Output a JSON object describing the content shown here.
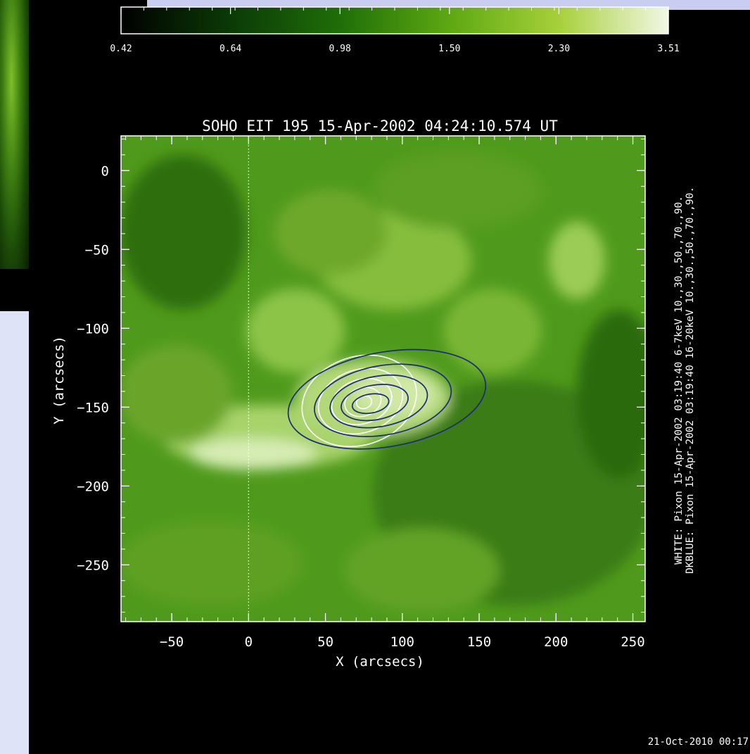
{
  "colorbar": {
    "tick_labels": [
      "0.42",
      "0.64",
      "0.98",
      "1.50",
      "2.30",
      "3.51"
    ],
    "colors": [
      "#000000",
      "#0b3a06",
      "#1f6e08",
      "#5da812",
      "#a7d03a",
      "#f2f7e6"
    ]
  },
  "chart_data": {
    "type": "heatmap",
    "title": "SOHO EIT 195 15-Apr-2002 04:24:10.574 UT",
    "xlabel": "X (arcsecs)",
    "ylabel": "Y (arcsecs)",
    "xlim": [
      -83,
      258
    ],
    "ylim": [
      -286,
      22
    ],
    "x_ticks": [
      -50,
      0,
      50,
      100,
      150,
      200,
      250
    ],
    "y_ticks": [
      0,
      -50,
      -100,
      -150,
      -200,
      -250
    ],
    "x_tick_labels": [
      "−50",
      "0",
      "50",
      "100",
      "150",
      "200",
      "250"
    ],
    "y_tick_labels": [
      "0",
      "−50",
      "−100",
      "−150",
      "−200",
      "−250"
    ],
    "vertical_guide_x": 0,
    "contours": [
      {
        "name": "WHITE",
        "color": "#ffffff",
        "center": [
          72,
          -146
        ],
        "levels": [
          10,
          30,
          50,
          70,
          90
        ],
        "radii": [
          [
            38,
            28
          ],
          [
            28,
            20
          ],
          [
            20,
            14
          ],
          [
            12,
            9
          ],
          [
            5,
            4
          ]
        ]
      },
      {
        "name": "DKBLUE",
        "color": "#1b2a7a",
        "center": [
          90,
          -145
        ],
        "levels": [
          10,
          30,
          50,
          70,
          90
        ],
        "radii": [
          [
            65,
            30
          ],
          [
            45,
            22
          ],
          [
            32,
            16
          ],
          [
            22,
            11
          ],
          [
            12,
            6
          ]
        ]
      }
    ],
    "legend_lines": [
      "WHITE: Pixon 15-Apr-2002 03:19:40 6-7keV 10.,30.,50.,70.,90.",
      "DKBLUE: Pixon 15-Apr-2002 03:19:40 16-20keV 10.,30.,50.,70.,90."
    ]
  },
  "timestamp": "21-Oct-2010 00:17"
}
